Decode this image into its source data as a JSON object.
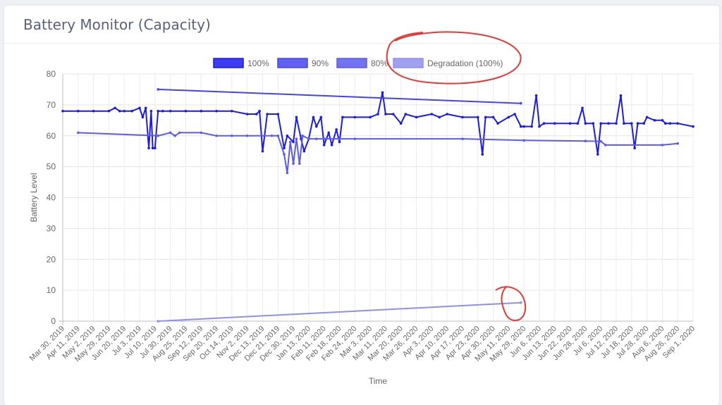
{
  "card": {
    "title": "Battery Monitor (Capacity)"
  },
  "chart_data": {
    "type": "line",
    "title": "",
    "xlabel": "Time",
    "ylabel": "Battery Level",
    "ylim": [
      0,
      80
    ],
    "yticks": [
      0,
      10,
      20,
      30,
      40,
      50,
      60,
      70,
      80
    ],
    "grid": true,
    "legend_position": "top",
    "categories": [
      "Mar 30, 2019",
      "Apr 11, 2019",
      "May 2, 2019",
      "May 29, 2019",
      "Jun 20, 2019",
      "Jul 3, 2019",
      "Jul 10, 2019",
      "Jul 30, 2019",
      "Aug 25, 2019",
      "Sep 12, 2019",
      "Sep 20, 2019",
      "Oct 14, 2019",
      "Nov 2, 2019",
      "Dec 13, 2019",
      "Dec 21, 2019",
      "Dec 30, 2019",
      "Jan 13, 2020",
      "Feb 11, 2020",
      "Feb 18, 2020",
      "Feb 24, 2020",
      "Mar 3, 2020",
      "Mar 11, 2020",
      "Mar 20, 2020",
      "Mar 26, 2020",
      "Apr 3, 2020",
      "Apr 10, 2020",
      "Apr 17, 2020",
      "Apr 23, 2020",
      "Apr 30, 2020",
      "May 11, 2020",
      "May 29, 2020",
      "Jun 6, 2020",
      "Jun 13, 2020",
      "Jun 22, 2020",
      "Jun 28, 2020",
      "Jul 6, 2020",
      "Jul 12, 2020",
      "Jul 18, 2020",
      "Jul 28, 2020",
      "Aug 6, 2020",
      "Aug 26, 2020",
      "Sep 1, 2020"
    ],
    "series": [
      {
        "name": "100%",
        "color": "#1a1aee",
        "points": [
          [
            0,
            68
          ],
          [
            1,
            68
          ],
          [
            2,
            68
          ],
          [
            3,
            68
          ],
          [
            3.4,
            69
          ],
          [
            3.7,
            68
          ],
          [
            4,
            68
          ],
          [
            4.5,
            68
          ],
          [
            5,
            69
          ],
          [
            5.2,
            66
          ],
          [
            5.4,
            69
          ],
          [
            5.6,
            56
          ],
          [
            5.75,
            68
          ],
          [
            5.85,
            56
          ],
          [
            6,
            56
          ],
          [
            6.2,
            68
          ],
          [
            6.5,
            68
          ],
          [
            7,
            68
          ],
          [
            8,
            68
          ],
          [
            9,
            68
          ],
          [
            10,
            68
          ],
          [
            11,
            68
          ],
          [
            12,
            67
          ],
          [
            12.6,
            67
          ],
          [
            12.8,
            68
          ],
          [
            13,
            55
          ],
          [
            13.3,
            67
          ],
          [
            14,
            67
          ],
          [
            14.4,
            56
          ],
          [
            14.6,
            60
          ],
          [
            15,
            58
          ],
          [
            15.2,
            66
          ],
          [
            15.5,
            59
          ],
          [
            15.7,
            55
          ],
          [
            16,
            59
          ],
          [
            16.3,
            66
          ],
          [
            16.5,
            63
          ],
          [
            16.8,
            66
          ],
          [
            17,
            57
          ],
          [
            17.3,
            61
          ],
          [
            17.5,
            57
          ],
          [
            17.8,
            62
          ],
          [
            18,
            58
          ],
          [
            18.2,
            66
          ],
          [
            19,
            66
          ],
          [
            20,
            66
          ],
          [
            20.5,
            67
          ],
          [
            20.8,
            74
          ],
          [
            21,
            67
          ],
          [
            21.5,
            67
          ],
          [
            22,
            64
          ],
          [
            22.3,
            67
          ],
          [
            23,
            66
          ],
          [
            24,
            67
          ],
          [
            24.5,
            66
          ],
          [
            25,
            67
          ],
          [
            26,
            66
          ],
          [
            27,
            66
          ],
          [
            27.3,
            54
          ],
          [
            27.5,
            66
          ],
          [
            28,
            66
          ],
          [
            28.3,
            64
          ],
          [
            29,
            66
          ],
          [
            29.4,
            67
          ],
          [
            29.8,
            63
          ],
          [
            30,
            63
          ],
          [
            30.5,
            63
          ],
          [
            30.8,
            73
          ],
          [
            31,
            63
          ],
          [
            31.3,
            64
          ],
          [
            32,
            64
          ],
          [
            33,
            64
          ],
          [
            33.5,
            64
          ],
          [
            33.8,
            69
          ],
          [
            34,
            64
          ],
          [
            34.5,
            64
          ],
          [
            34.8,
            54
          ],
          [
            35,
            64
          ],
          [
            35.5,
            64
          ],
          [
            36,
            64
          ],
          [
            36.3,
            73
          ],
          [
            36.5,
            64
          ],
          [
            37,
            64
          ],
          [
            37.2,
            56
          ],
          [
            37.4,
            64
          ],
          [
            37.8,
            64
          ],
          [
            38,
            66
          ],
          [
            38.5,
            65
          ],
          [
            39,
            65
          ],
          [
            39.2,
            64
          ],
          [
            39.5,
            64
          ],
          [
            40,
            64
          ],
          [
            41,
            63
          ]
        ]
      },
      {
        "name": "90%",
        "color": "#4444ee",
        "points": [
          [
            6.2,
            75
          ],
          [
            29.8,
            70.5
          ]
        ]
      },
      {
        "name": "80%",
        "color": "#5b5bee",
        "points": [
          [
            1,
            61
          ],
          [
            6.2,
            60
          ],
          [
            7,
            61
          ],
          [
            7.3,
            60
          ],
          [
            7.6,
            61
          ],
          [
            9,
            61
          ],
          [
            10,
            60
          ],
          [
            11,
            60
          ],
          [
            12,
            60
          ],
          [
            13.6,
            60
          ],
          [
            14,
            60
          ],
          [
            14.4,
            54
          ],
          [
            14.6,
            48
          ],
          [
            14.8,
            58
          ],
          [
            15,
            51
          ],
          [
            15.2,
            59
          ],
          [
            15.4,
            51
          ],
          [
            15.6,
            60
          ],
          [
            16,
            59
          ],
          [
            16.5,
            59
          ],
          [
            17,
            59
          ],
          [
            18,
            59
          ],
          [
            19,
            59
          ],
          [
            26,
            59
          ],
          [
            30,
            58.5
          ],
          [
            34,
            58.3
          ],
          [
            35,
            58.2
          ],
          [
            35.3,
            57
          ],
          [
            39,
            57
          ],
          [
            40,
            57.5
          ]
        ]
      },
      {
        "name": "Degradation (100%)",
        "color": "#8f8ff0",
        "points": [
          [
            6.2,
            0
          ],
          [
            29.8,
            6
          ]
        ]
      }
    ]
  }
}
